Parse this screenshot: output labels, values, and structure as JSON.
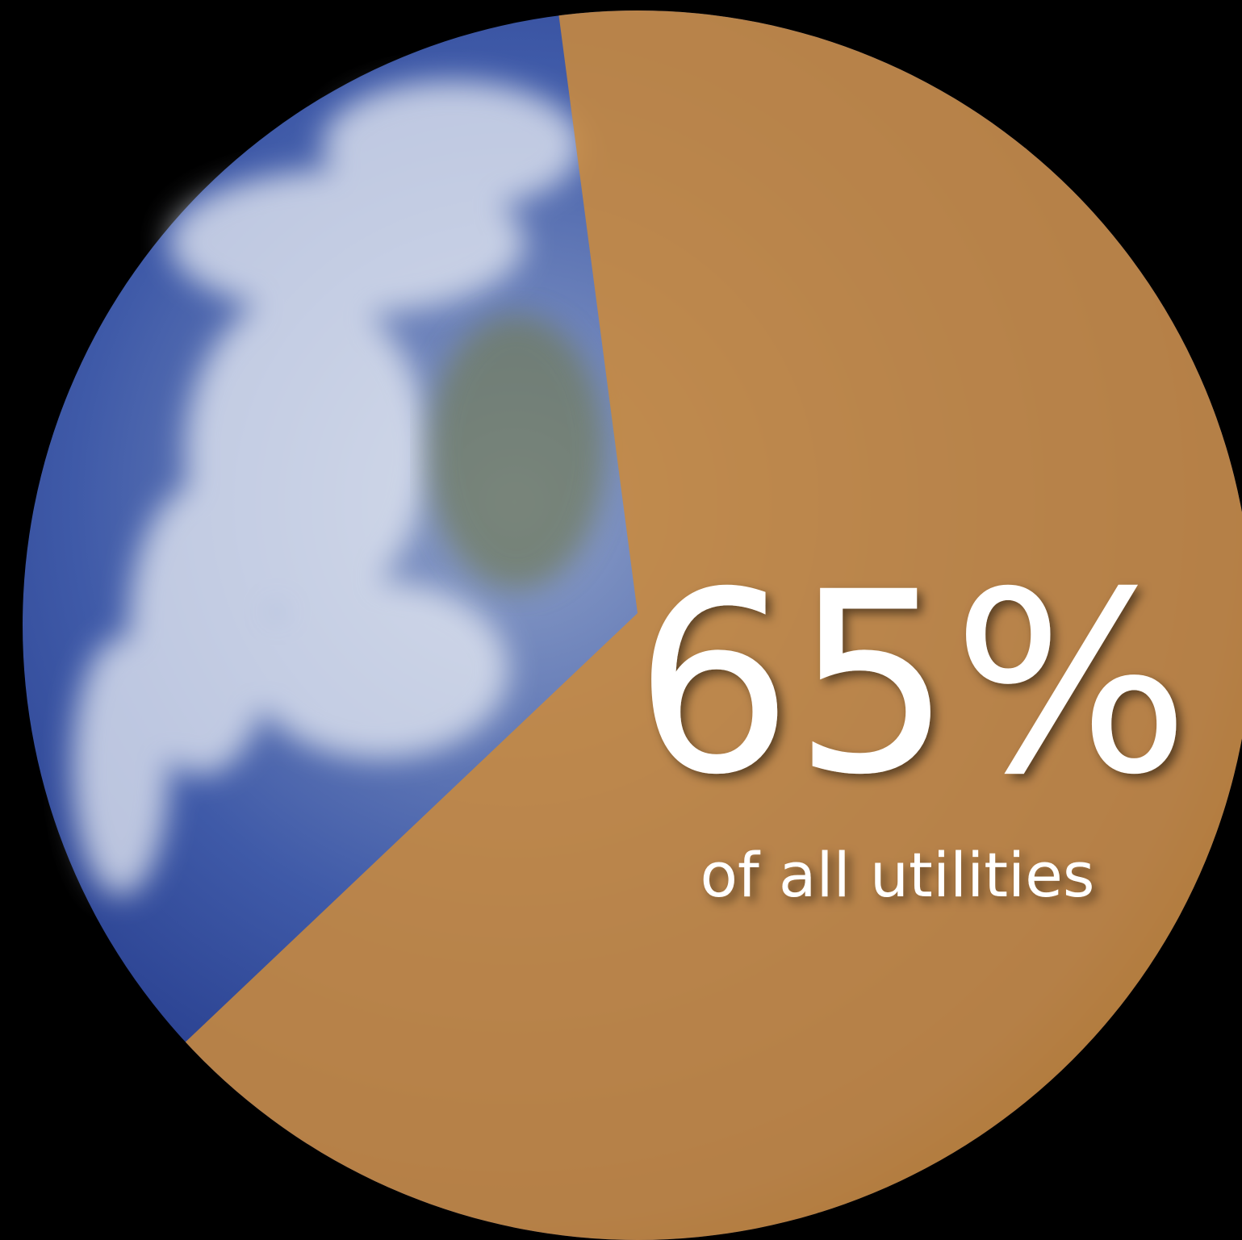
{
  "chart_data": {
    "type": "pie",
    "values": [
      65
    ],
    "value_labels": [
      "65%"
    ],
    "color": "#c98a3e",
    "annotation": "of all utilities"
  }
}
